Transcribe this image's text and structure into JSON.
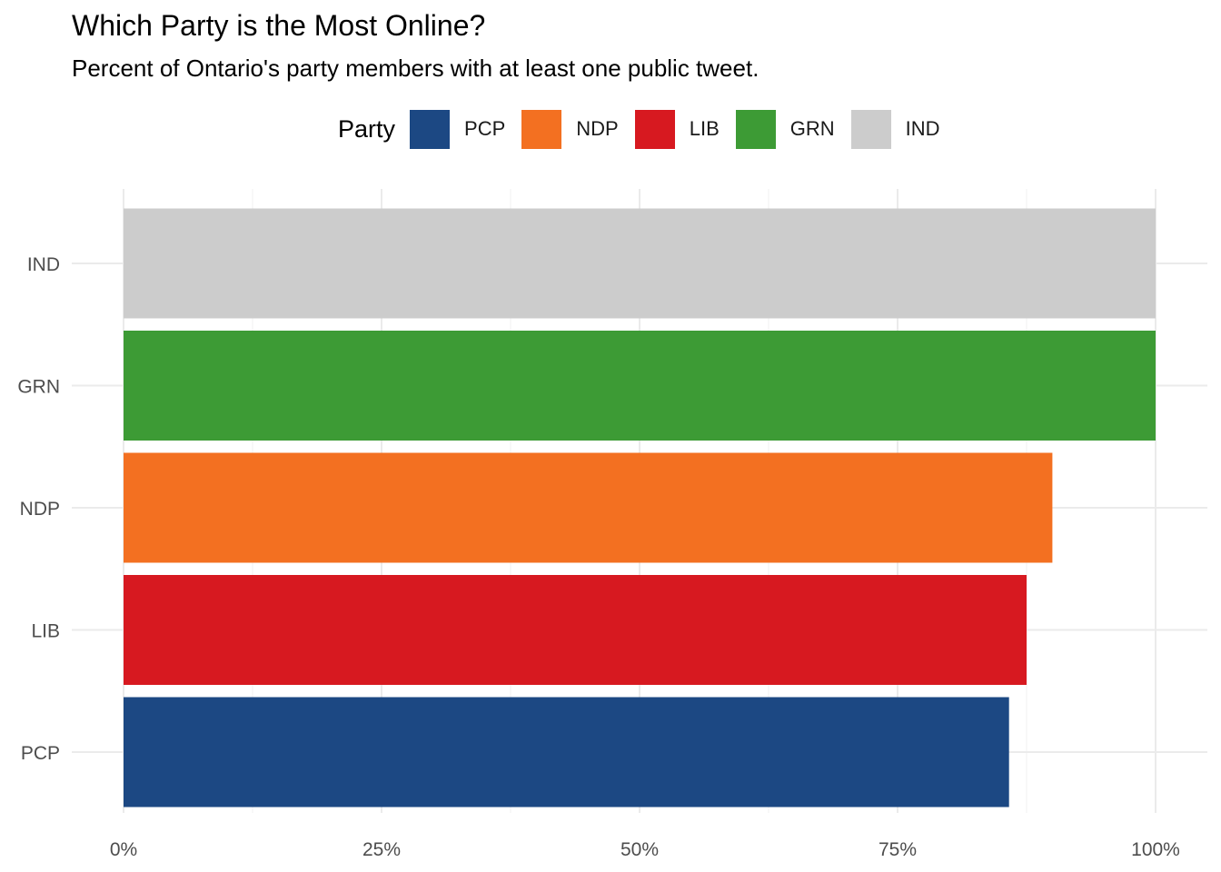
{
  "chart_data": {
    "type": "bar",
    "orientation": "horizontal",
    "title": "Which Party is the Most Online?",
    "subtitle": "Percent of Ontario's party members with at least one public tweet.",
    "legend_title": "Party",
    "categories": [
      "IND",
      "GRN",
      "NDP",
      "LIB",
      "PCP"
    ],
    "values": [
      100,
      100,
      90,
      87.5,
      85.8
    ],
    "colors": {
      "PCP": "#1c4883",
      "NDP": "#f37021",
      "LIB": "#d71920",
      "GRN": "#3d9b35",
      "IND": "#cccccc"
    },
    "legend_order": [
      "PCP",
      "NDP",
      "LIB",
      "GRN",
      "IND"
    ],
    "xlim": [
      0,
      100
    ],
    "x_ticks": [
      {
        "value": 0,
        "label": "0%"
      },
      {
        "value": 25,
        "label": "25%"
      },
      {
        "value": 50,
        "label": "50%"
      },
      {
        "value": 75,
        "label": "75%"
      },
      {
        "value": 100,
        "label": "100%"
      }
    ],
    "grid": true,
    "legend_position": "top"
  }
}
